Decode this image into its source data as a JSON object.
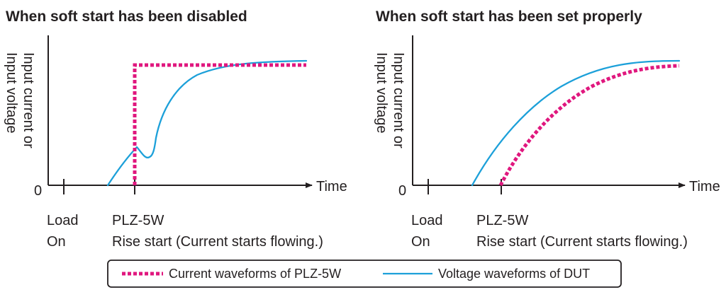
{
  "panels": [
    {
      "title": "When soft start has been disabled",
      "y_axis_label": [
        "Input current or",
        "Input voltage"
      ],
      "zero_label": "0",
      "x_axis_label": "Time",
      "markers": [
        {
          "label_lines": [
            "Load",
            "On"
          ]
        },
        {
          "label_lines": [
            "PLZ-5W",
            "Rise start (Current starts flowing.)"
          ]
        }
      ]
    },
    {
      "title": "When soft start has been set properly",
      "y_axis_label": [
        "Input current or",
        "Input voltage"
      ],
      "zero_label": "0",
      "x_axis_label": "Time",
      "markers": [
        {
          "label_lines": [
            "Load",
            "On"
          ]
        },
        {
          "label_lines": [
            "PLZ-5W",
            "Rise start (Current starts flowing.)"
          ]
        }
      ]
    }
  ],
  "legend": {
    "items": [
      {
        "label": "Current waveforms of PLZ-5W",
        "style": "dotted",
        "color": "#e0177e",
        "icon": "magenta-dotted-line"
      },
      {
        "label": "Voltage waveforms of DUT",
        "style": "solid",
        "color": "#1ca0d9",
        "icon": "blue-solid-line"
      }
    ]
  },
  "colors": {
    "current": "#e0177e",
    "voltage": "#1ca0d9",
    "axis": "#231f20"
  }
}
